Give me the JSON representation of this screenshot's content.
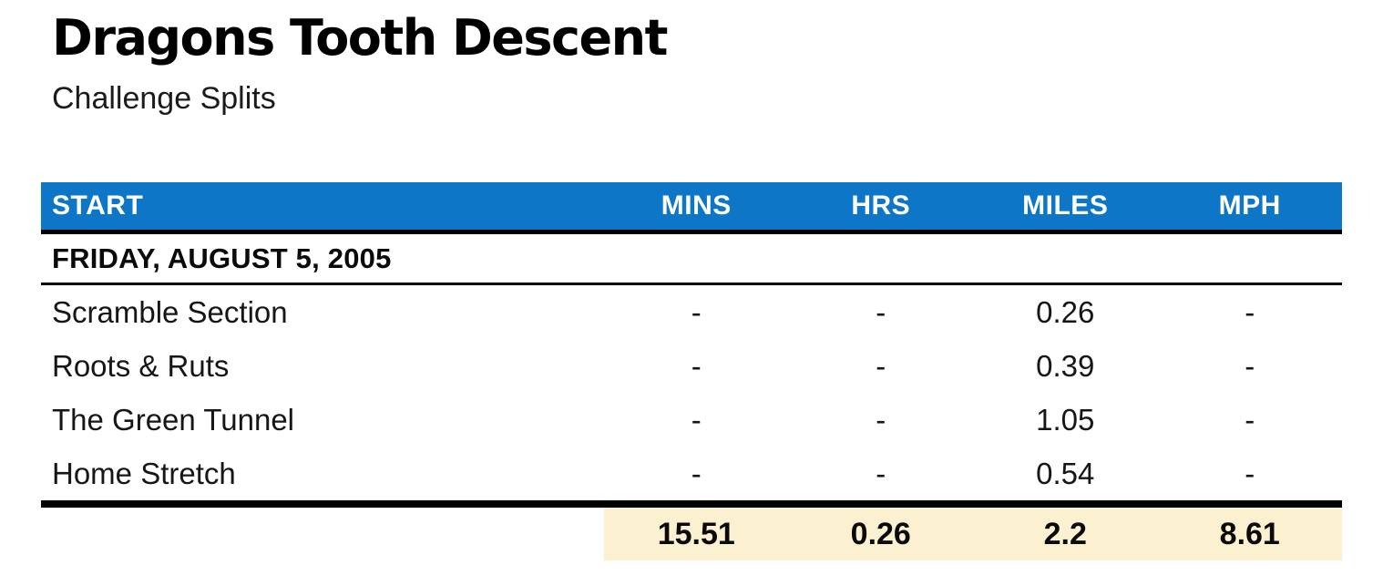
{
  "chart_data": {
    "type": "table",
    "title": "Dragons Tooth Descent",
    "subtitle": "Challenge Splits",
    "columns": [
      "START",
      "MINS",
      "HRS",
      "MILES",
      "MPH"
    ],
    "section_header": "FRIDAY, AUGUST 5, 2005",
    "rows": [
      {
        "name": "Scramble Section",
        "mins": "-",
        "hrs": "-",
        "miles": "0.26",
        "mph": "-"
      },
      {
        "name": "Roots & Ruts",
        "mins": "-",
        "hrs": "-",
        "miles": "0.39",
        "mph": "-"
      },
      {
        "name": "The Green Tunnel",
        "mins": "-",
        "hrs": "-",
        "miles": "1.05",
        "mph": "-"
      },
      {
        "name": "Home Stretch",
        "mins": "-",
        "hrs": "-",
        "miles": "0.54",
        "mph": "-"
      }
    ],
    "totals": {
      "mins": "15.51",
      "hrs": "0.26",
      "miles": "2.2",
      "mph": "8.61"
    },
    "layout": {
      "grid": false,
      "totals_highlighted": true,
      "section_grouped": true
    }
  },
  "colors": {
    "header_bg": "#0e76c6",
    "header_text": "#ffffff",
    "totals_bg": "#fbf0d0",
    "rule_color": "#000000",
    "body_text": "#161616"
  }
}
